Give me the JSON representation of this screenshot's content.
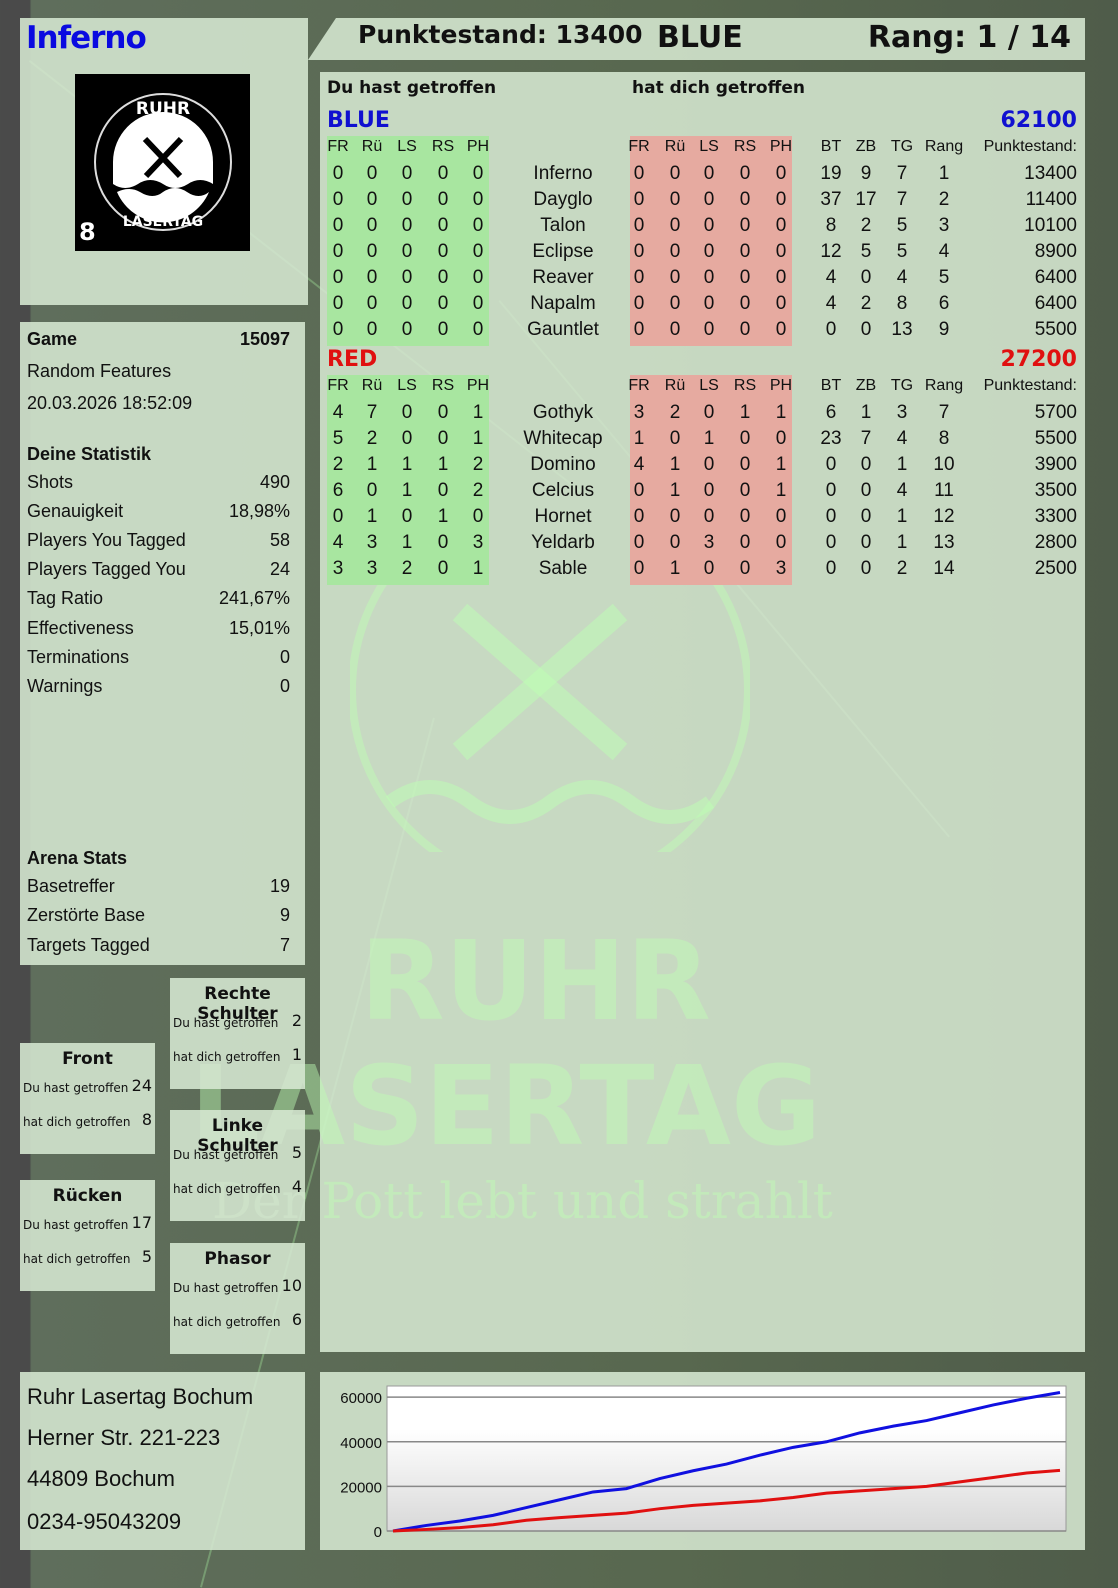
{
  "player": {
    "name": "Inferno",
    "logo_text": [
      "RUHR",
      "LASERTAG",
      "8"
    ]
  },
  "header": {
    "score": "Punktestand: 13400",
    "team": "BLUE",
    "rank": "Rang: 1 / 14"
  },
  "game": {
    "label": "Game",
    "number": "15097",
    "mode": "Random Features",
    "datetime": "20.03.2026 18:52:09"
  },
  "stats": {
    "title": "Deine Statistik",
    "items": [
      {
        "label": "Shots",
        "value": "490"
      },
      {
        "label": "Genauigkeit",
        "value": "18,98%"
      },
      {
        "label": "Players You Tagged",
        "value": "58"
      },
      {
        "label": "Players Tagged You",
        "value": "24"
      },
      {
        "label": "Tag Ratio",
        "value": "241,67%"
      },
      {
        "label": "Effectiveness",
        "value": "15,01%"
      },
      {
        "label": "Terminations",
        "value": "0"
      },
      {
        "label": "Warnings",
        "value": "0"
      }
    ]
  },
  "arena": {
    "title": "Arena Stats",
    "items": [
      {
        "label": "Basetreffer",
        "value": "19"
      },
      {
        "label": "Zerstörte Base",
        "value": "9"
      },
      {
        "label": "Targets Tagged",
        "value": "7"
      }
    ]
  },
  "hitzones": [
    {
      "title": "Rechte Schulter",
      "hit_label": "Du hast getroffen",
      "hit": "2",
      "got_label": "hat dich getroffen",
      "got": "1"
    },
    {
      "title": "Front",
      "hit_label": "Du hast getroffen",
      "hit": "24",
      "got_label": "hat dich getroffen",
      "got": "8"
    },
    {
      "title": "Linke Schulter",
      "hit_label": "Du hast getroffen",
      "hit": "5",
      "got_label": "hat dich getroffen",
      "got": "4"
    },
    {
      "title": "Rücken",
      "hit_label": "Du hast getroffen",
      "hit": "17",
      "got_label": "hat dich getroffen",
      "got": "5"
    },
    {
      "title": "Phasor",
      "hit_label": "Du hast getroffen",
      "hit": "10",
      "got_label": "hat dich getroffen",
      "got": "6"
    }
  ],
  "table": {
    "you_hit": "Du hast getroffen",
    "hit_you": "hat dich getroffen",
    "zone_cols": [
      "FR",
      "Rü",
      "LS",
      "RS",
      "PH"
    ],
    "stat_cols": [
      "BT",
      "ZB",
      "TG",
      "Rang",
      "Punktestand:"
    ],
    "teams": [
      {
        "name": "BLUE",
        "total": "62100",
        "color": "#1010d0",
        "players": [
          {
            "name": "Inferno",
            "hit": [
              "0",
              "0",
              "0",
              "0",
              "0"
            ],
            "got": [
              "0",
              "0",
              "0",
              "0",
              "0"
            ],
            "stats": [
              "19",
              "9",
              "7",
              "1",
              "13400"
            ]
          },
          {
            "name": "Dayglo",
            "hit": [
              "0",
              "0",
              "0",
              "0",
              "0"
            ],
            "got": [
              "0",
              "0",
              "0",
              "0",
              "0"
            ],
            "stats": [
              "37",
              "17",
              "7",
              "2",
              "11400"
            ]
          },
          {
            "name": "Talon",
            "hit": [
              "0",
              "0",
              "0",
              "0",
              "0"
            ],
            "got": [
              "0",
              "0",
              "0",
              "0",
              "0"
            ],
            "stats": [
              "8",
              "2",
              "5",
              "3",
              "10100"
            ]
          },
          {
            "name": "Eclipse",
            "hit": [
              "0",
              "0",
              "0",
              "0",
              "0"
            ],
            "got": [
              "0",
              "0",
              "0",
              "0",
              "0"
            ],
            "stats": [
              "12",
              "5",
              "5",
              "4",
              "8900"
            ]
          },
          {
            "name": "Reaver",
            "hit": [
              "0",
              "0",
              "0",
              "0",
              "0"
            ],
            "got": [
              "0",
              "0",
              "0",
              "0",
              "0"
            ],
            "stats": [
              "4",
              "0",
              "4",
              "5",
              "6400"
            ]
          },
          {
            "name": "Napalm",
            "hit": [
              "0",
              "0",
              "0",
              "0",
              "0"
            ],
            "got": [
              "0",
              "0",
              "0",
              "0",
              "0"
            ],
            "stats": [
              "4",
              "2",
              "8",
              "6",
              "6400"
            ]
          },
          {
            "name": "Gauntlet",
            "hit": [
              "0",
              "0",
              "0",
              "0",
              "0"
            ],
            "got": [
              "0",
              "0",
              "0",
              "0",
              "0"
            ],
            "stats": [
              "0",
              "0",
              "13",
              "9",
              "5500"
            ]
          }
        ]
      },
      {
        "name": "RED",
        "total": "27200",
        "color": "#e01010",
        "players": [
          {
            "name": "Gothyk",
            "hit": [
              "4",
              "7",
              "0",
              "0",
              "1"
            ],
            "got": [
              "3",
              "2",
              "0",
              "1",
              "1"
            ],
            "stats": [
              "6",
              "1",
              "3",
              "7",
              "5700"
            ]
          },
          {
            "name": "Whitecap",
            "hit": [
              "5",
              "2",
              "0",
              "0",
              "1"
            ],
            "got": [
              "1",
              "0",
              "1",
              "0",
              "0"
            ],
            "stats": [
              "23",
              "7",
              "4",
              "8",
              "5500"
            ]
          },
          {
            "name": "Domino",
            "hit": [
              "2",
              "1",
              "1",
              "1",
              "2"
            ],
            "got": [
              "4",
              "1",
              "0",
              "0",
              "1"
            ],
            "stats": [
              "0",
              "0",
              "1",
              "10",
              "3900"
            ]
          },
          {
            "name": "Celcius",
            "hit": [
              "6",
              "0",
              "1",
              "0",
              "2"
            ],
            "got": [
              "0",
              "1",
              "0",
              "0",
              "1"
            ],
            "stats": [
              "0",
              "0",
              "4",
              "11",
              "3500"
            ]
          },
          {
            "name": "Hornet",
            "hit": [
              "0",
              "1",
              "0",
              "1",
              "0"
            ],
            "got": [
              "0",
              "0",
              "0",
              "0",
              "0"
            ],
            "stats": [
              "0",
              "0",
              "1",
              "12",
              "3300"
            ]
          },
          {
            "name": "Yeldarb",
            "hit": [
              "4",
              "3",
              "1",
              "0",
              "3"
            ],
            "got": [
              "0",
              "0",
              "3",
              "0",
              "0"
            ],
            "stats": [
              "0",
              "0",
              "1",
              "13",
              "2800"
            ]
          },
          {
            "name": "Sable",
            "hit": [
              "3",
              "3",
              "2",
              "0",
              "1"
            ],
            "got": [
              "0",
              "1",
              "0",
              "0",
              "3"
            ],
            "stats": [
              "0",
              "0",
              "2",
              "14",
              "2500"
            ]
          }
        ]
      }
    ]
  },
  "watermark": {
    "line1": "RUHR",
    "line2": "LASERTAG",
    "slogan": "Der Pott lebt und strahlt"
  },
  "address": {
    "lines": [
      "Ruhr Lasertag Bochum",
      "Herner Str. 221-223",
      "44809 Bochum",
      "0234-95043209"
    ]
  },
  "colors": {
    "green_block": "#a8e6a0",
    "red_block": "#e6aaa0",
    "blue": "#1010d0",
    "red": "#e01010"
  },
  "chart_data": {
    "type": "line",
    "ylim": [
      0,
      65000
    ],
    "yticks": [
      "0",
      "20000",
      "40000",
      "60000"
    ],
    "grid": true,
    "series": [
      {
        "color": "#1010e0",
        "values": [
          0,
          2500,
          4500,
          7000,
          10500,
          14000,
          17500,
          19000,
          23500,
          27000,
          30000,
          34000,
          37500,
          40000,
          44000,
          47000,
          49500,
          53000,
          56500,
          59500,
          62100
        ]
      },
      {
        "color": "#e01010",
        "values": [
          0,
          700,
          1500,
          2800,
          4800,
          6000,
          7000,
          8000,
          10000,
          11500,
          12500,
          13500,
          15000,
          17000,
          18000,
          19000,
          20000,
          22000,
          24000,
          26000,
          27200
        ]
      }
    ]
  }
}
